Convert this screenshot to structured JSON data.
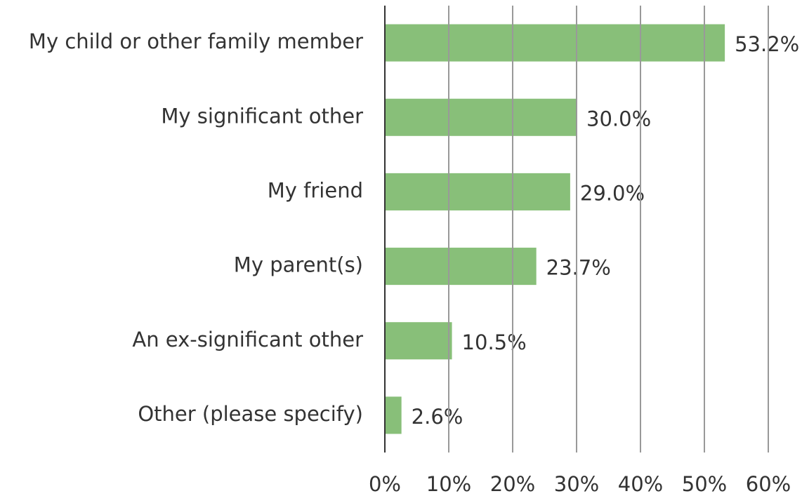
{
  "chart_data": {
    "type": "hbar",
    "categories": [
      "My child or other family member",
      "My significant other",
      "My friend",
      "My parent(s)",
      "An ex-significant other",
      "Other (please specify)"
    ],
    "values": [
      53.2,
      30.0,
      29.0,
      23.7,
      10.5,
      2.6
    ],
    "value_labels": [
      "53.2%",
      "30.0%",
      "29.0%",
      "23.7%",
      "10.5%",
      "2.6%"
    ],
    "color": "#82bc72",
    "xlim": [
      0,
      60
    ],
    "xticks": [
      {
        "value": 0,
        "label": "0%"
      },
      {
        "value": 10,
        "label": "10%"
      },
      {
        "value": 20,
        "label": "20%"
      },
      {
        "value": 30,
        "label": "30%"
      },
      {
        "value": 40,
        "label": "40%"
      },
      {
        "value": 50,
        "label": "50%"
      },
      {
        "value": 60,
        "label": "60%"
      }
    ],
    "grid": true
  }
}
